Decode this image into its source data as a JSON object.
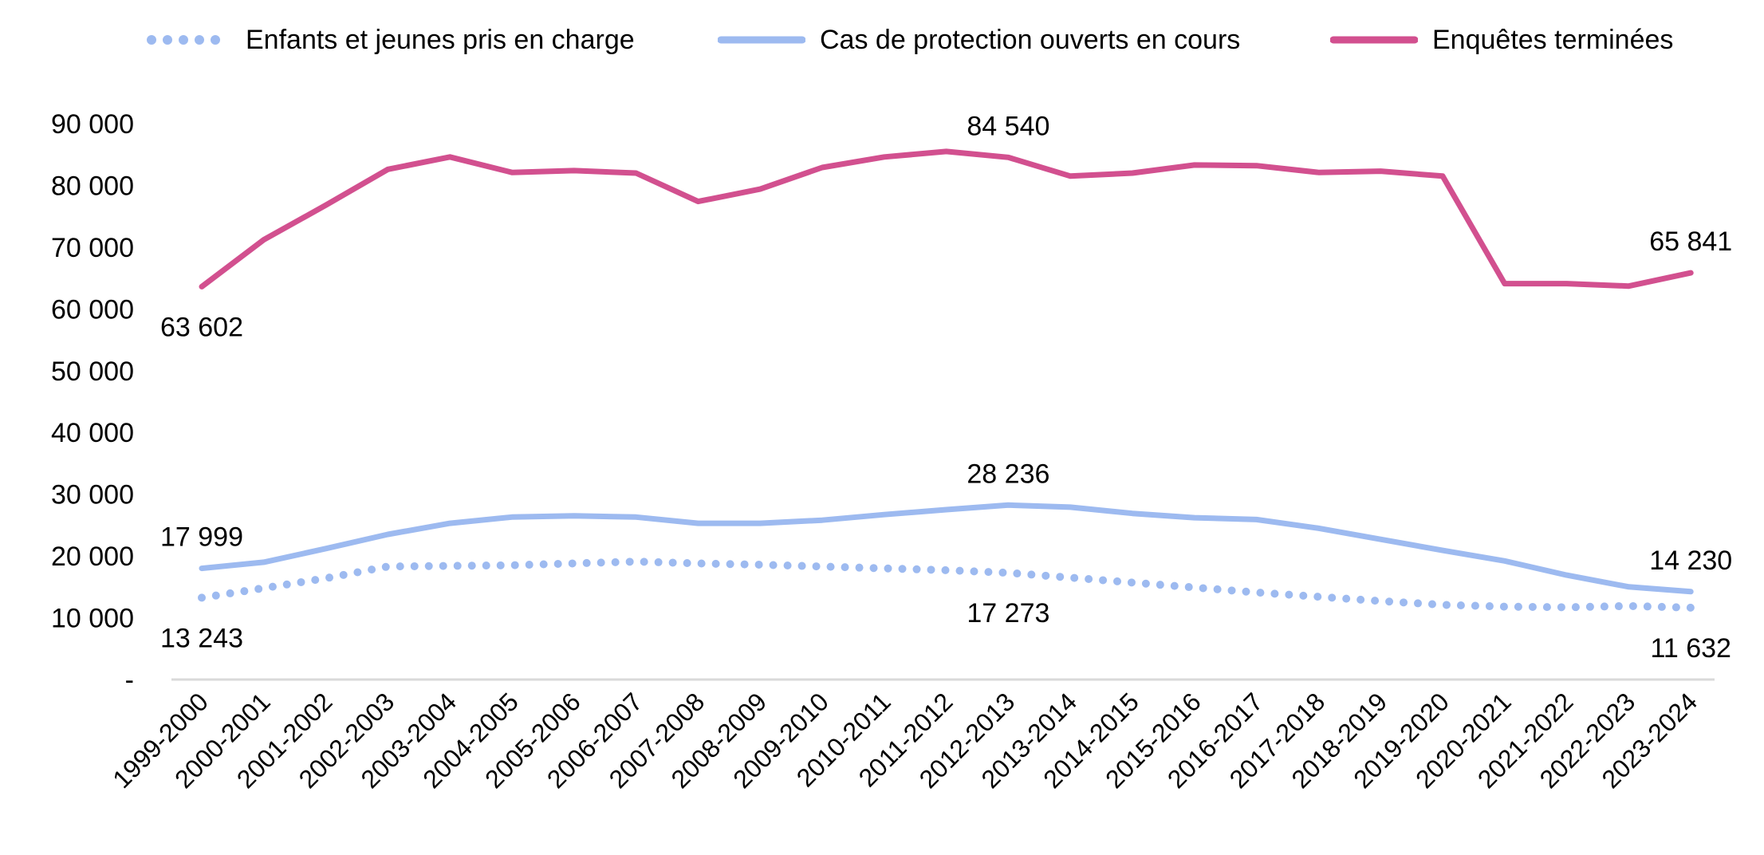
{
  "chart_data": {
    "type": "line",
    "categories": [
      "1999-2000",
      "2000-2001",
      "2001-2002",
      "2002-2003",
      "2003-2004",
      "2004-2005",
      "2005-2006",
      "2006-2007",
      "2007-2008",
      "2008-2009",
      "2009-2010",
      "2010-2011",
      "2011-2012",
      "2012-2013",
      "2013-2014",
      "2014-2015",
      "2015-2016",
      "2016-2017",
      "2017-2018",
      "2018-2019",
      "2019-2020",
      "2020-2021",
      "2021-2022",
      "2022-2023",
      "2023-2024"
    ],
    "ylim": [
      0,
      90000
    ],
    "yticks": [
      0,
      10000,
      20000,
      30000,
      40000,
      50000,
      60000,
      70000,
      80000,
      90000
    ],
    "ytick_labels": [
      "-",
      "10 000",
      "20 000",
      "30 000",
      "40 000",
      "50 000",
      "60 000",
      "70 000",
      "80 000",
      "90 000"
    ],
    "grid": false,
    "legend_position": "top",
    "series": [
      {
        "name": "Enfants et jeunes pris en charge",
        "style": "dotted",
        "color": "#9dbaf0",
        "values": [
          13243,
          14800,
          16400,
          18300,
          18400,
          18500,
          18800,
          19100,
          18800,
          18600,
          18300,
          18000,
          17700,
          17273,
          16500,
          15700,
          14900,
          14100,
          13400,
          12700,
          12100,
          11800,
          11700,
          11900,
          11632
        ]
      },
      {
        "name": "Cas de protection ouverts en cours",
        "style": "solid",
        "color": "#9dbaf0",
        "values": [
          17999,
          19000,
          21200,
          23500,
          25300,
          26300,
          26500,
          26300,
          25300,
          25300,
          25800,
          26700,
          27500,
          28236,
          27900,
          26900,
          26200,
          25900,
          24500,
          22700,
          20900,
          19200,
          16900,
          15000,
          14230
        ]
      },
      {
        "name": "Enquêtes terminées",
        "style": "solid",
        "color": "#d2508f",
        "values": [
          63602,
          71200,
          76800,
          82600,
          84600,
          82100,
          82400,
          82000,
          77400,
          79400,
          82900,
          84600,
          85500,
          84540,
          81500,
          82000,
          83300,
          83200,
          82100,
          82300,
          81500,
          64100,
          64100,
          63700,
          65841
        ]
      }
    ],
    "data_labels": [
      {
        "series": 2,
        "index": 0,
        "text": "63 602",
        "pos": "below"
      },
      {
        "series": 2,
        "index": 13,
        "text": "84 540",
        "pos": "above"
      },
      {
        "series": 2,
        "index": 24,
        "text": "65 841",
        "pos": "above"
      },
      {
        "series": 1,
        "index": 0,
        "text": "17 999",
        "pos": "above"
      },
      {
        "series": 1,
        "index": 13,
        "text": "28 236",
        "pos": "above"
      },
      {
        "series": 1,
        "index": 24,
        "text": "14 230",
        "pos": "above"
      },
      {
        "series": 0,
        "index": 0,
        "text": "13 243",
        "pos": "below"
      },
      {
        "series": 0,
        "index": 13,
        "text": "17 273",
        "pos": "below"
      },
      {
        "series": 0,
        "index": 24,
        "text": "11 632",
        "pos": "below"
      }
    ]
  }
}
